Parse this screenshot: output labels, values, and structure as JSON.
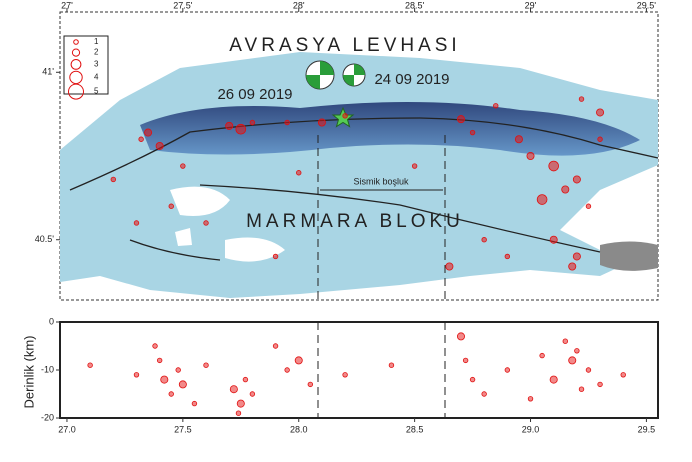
{
  "map": {
    "plate_label": "AVRASYA LEVHASI",
    "block_label": "MARMARA BLOKU",
    "event_labels": [
      "26 09 2019",
      "24 09 2019"
    ],
    "gap_label": "Sismik boşluk",
    "legend": [
      "1",
      "2",
      "3",
      "4",
      "5"
    ],
    "xlim": [
      26.97,
      29.55
    ],
    "ylim": [
      40.32,
      41.18
    ],
    "xticks": [
      {
        "value": 27,
        "label": "27'"
      },
      {
        "value": 27.5,
        "label": "27.5'"
      },
      {
        "value": 28,
        "label": "28'"
      },
      {
        "value": 28.5,
        "label": "28.5'"
      },
      {
        "value": 29,
        "label": "29'"
      },
      {
        "value": 29.5,
        "label": "29.5'"
      }
    ],
    "yticks": [
      {
        "value": 41,
        "label": "41'"
      },
      {
        "value": 40.5,
        "label": "40.5'"
      }
    ],
    "epicenters": [
      {
        "lon": 27.35,
        "lat": 40.82,
        "mag": 2
      },
      {
        "lon": 27.4,
        "lat": 40.78,
        "mag": 2
      },
      {
        "lon": 27.32,
        "lat": 40.8,
        "mag": 1
      },
      {
        "lon": 27.7,
        "lat": 40.84,
        "mag": 2
      },
      {
        "lon": 27.75,
        "lat": 40.83,
        "mag": 3
      },
      {
        "lon": 27.8,
        "lat": 40.85,
        "mag": 1
      },
      {
        "lon": 27.95,
        "lat": 40.85,
        "mag": 1
      },
      {
        "lon": 28.1,
        "lat": 40.85,
        "mag": 2
      },
      {
        "lon": 28.2,
        "lat": 40.87,
        "mag": 1
      },
      {
        "lon": 28.7,
        "lat": 40.86,
        "mag": 2
      },
      {
        "lon": 28.75,
        "lat": 40.82,
        "mag": 1
      },
      {
        "lon": 28.95,
        "lat": 40.8,
        "mag": 2
      },
      {
        "lon": 29.0,
        "lat": 40.75,
        "mag": 2
      },
      {
        "lon": 29.1,
        "lat": 40.72,
        "mag": 3
      },
      {
        "lon": 29.15,
        "lat": 40.65,
        "mag": 2
      },
      {
        "lon": 29.2,
        "lat": 40.68,
        "mag": 2
      },
      {
        "lon": 29.25,
        "lat": 40.6,
        "mag": 1
      },
      {
        "lon": 29.05,
        "lat": 40.62,
        "mag": 3
      },
      {
        "lon": 29.2,
        "lat": 40.45,
        "mag": 2
      },
      {
        "lon": 29.18,
        "lat": 40.42,
        "mag": 2
      },
      {
        "lon": 28.9,
        "lat": 40.45,
        "mag": 1
      },
      {
        "lon": 29.3,
        "lat": 40.8,
        "mag": 1
      },
      {
        "lon": 29.3,
        "lat": 40.88,
        "mag": 2
      },
      {
        "lon": 27.5,
        "lat": 40.72,
        "mag": 1
      },
      {
        "lon": 27.2,
        "lat": 40.68,
        "mag": 1
      },
      {
        "lon": 27.45,
        "lat": 40.6,
        "mag": 1
      },
      {
        "lon": 27.6,
        "lat": 40.55,
        "mag": 1
      },
      {
        "lon": 28.0,
        "lat": 40.7,
        "mag": 1
      },
      {
        "lon": 28.5,
        "lat": 40.72,
        "mag": 1
      },
      {
        "lon": 28.65,
        "lat": 40.42,
        "mag": 2
      },
      {
        "lon": 28.8,
        "lat": 40.5,
        "mag": 1
      },
      {
        "lon": 27.9,
        "lat": 40.45,
        "mag": 1
      },
      {
        "lon": 27.3,
        "lat": 40.55,
        "mag": 1
      },
      {
        "lon": 29.1,
        "lat": 40.5,
        "mag": 2
      },
      {
        "lon": 29.22,
        "lat": 40.92,
        "mag": 1
      },
      {
        "lon": 28.85,
        "lat": 40.9,
        "mag": 1
      }
    ]
  },
  "depth_section": {
    "ylabel": "Derinlik (km)",
    "xlim": [
      26.97,
      29.55
    ],
    "ylim": [
      -20,
      0
    ],
    "xticks": [
      {
        "value": 27,
        "label": "27.0"
      },
      {
        "value": 27.5,
        "label": "27.5"
      },
      {
        "value": 28,
        "label": "28.0"
      },
      {
        "value": 28.5,
        "label": "28.5"
      },
      {
        "value": 29,
        "label": "29.0"
      },
      {
        "value": 29.5,
        "label": "29.5"
      }
    ],
    "yticks": [
      0,
      -10,
      -20
    ],
    "events": [
      {
        "lon": 27.4,
        "depth": -8,
        "mag": 1
      },
      {
        "lon": 27.42,
        "depth": -12,
        "mag": 2
      },
      {
        "lon": 27.45,
        "depth": -15,
        "mag": 1
      },
      {
        "lon": 27.48,
        "depth": -10,
        "mag": 1
      },
      {
        "lon": 27.5,
        "depth": -13,
        "mag": 2
      },
      {
        "lon": 27.38,
        "depth": -5,
        "mag": 1
      },
      {
        "lon": 27.55,
        "depth": -17,
        "mag": 1
      },
      {
        "lon": 27.3,
        "depth": -11,
        "mag": 1
      },
      {
        "lon": 27.6,
        "depth": -9,
        "mag": 1
      },
      {
        "lon": 27.72,
        "depth": -14,
        "mag": 2
      },
      {
        "lon": 27.75,
        "depth": -17,
        "mag": 2
      },
      {
        "lon": 27.77,
        "depth": -12,
        "mag": 1
      },
      {
        "lon": 27.74,
        "depth": -19,
        "mag": 1
      },
      {
        "lon": 27.8,
        "depth": -15,
        "mag": 1
      },
      {
        "lon": 27.95,
        "depth": -10,
        "mag": 1
      },
      {
        "lon": 28.0,
        "depth": -8,
        "mag": 2
      },
      {
        "lon": 28.05,
        "depth": -13,
        "mag": 1
      },
      {
        "lon": 27.9,
        "depth": -5,
        "mag": 1
      },
      {
        "lon": 28.2,
        "depth": -11,
        "mag": 1
      },
      {
        "lon": 28.4,
        "depth": -9,
        "mag": 1
      },
      {
        "lon": 28.7,
        "depth": -3,
        "mag": 2
      },
      {
        "lon": 28.72,
        "depth": -8,
        "mag": 1
      },
      {
        "lon": 28.75,
        "depth": -12,
        "mag": 1
      },
      {
        "lon": 28.8,
        "depth": -15,
        "mag": 1
      },
      {
        "lon": 28.9,
        "depth": -10,
        "mag": 1
      },
      {
        "lon": 29.05,
        "depth": -7,
        "mag": 1
      },
      {
        "lon": 29.1,
        "depth": -12,
        "mag": 2
      },
      {
        "lon": 29.15,
        "depth": -4,
        "mag": 1
      },
      {
        "lon": 29.18,
        "depth": -8,
        "mag": 2
      },
      {
        "lon": 29.2,
        "depth": -6,
        "mag": 1
      },
      {
        "lon": 29.22,
        "depth": -14,
        "mag": 1
      },
      {
        "lon": 29.25,
        "depth": -10,
        "mag": 1
      },
      {
        "lon": 29.3,
        "depth": -13,
        "mag": 1
      },
      {
        "lon": 29.4,
        "depth": -11,
        "mag": 1
      },
      {
        "lon": 29.0,
        "depth": -16,
        "mag": 1
      },
      {
        "lon": 27.1,
        "depth": -9,
        "mag": 1
      }
    ]
  }
}
